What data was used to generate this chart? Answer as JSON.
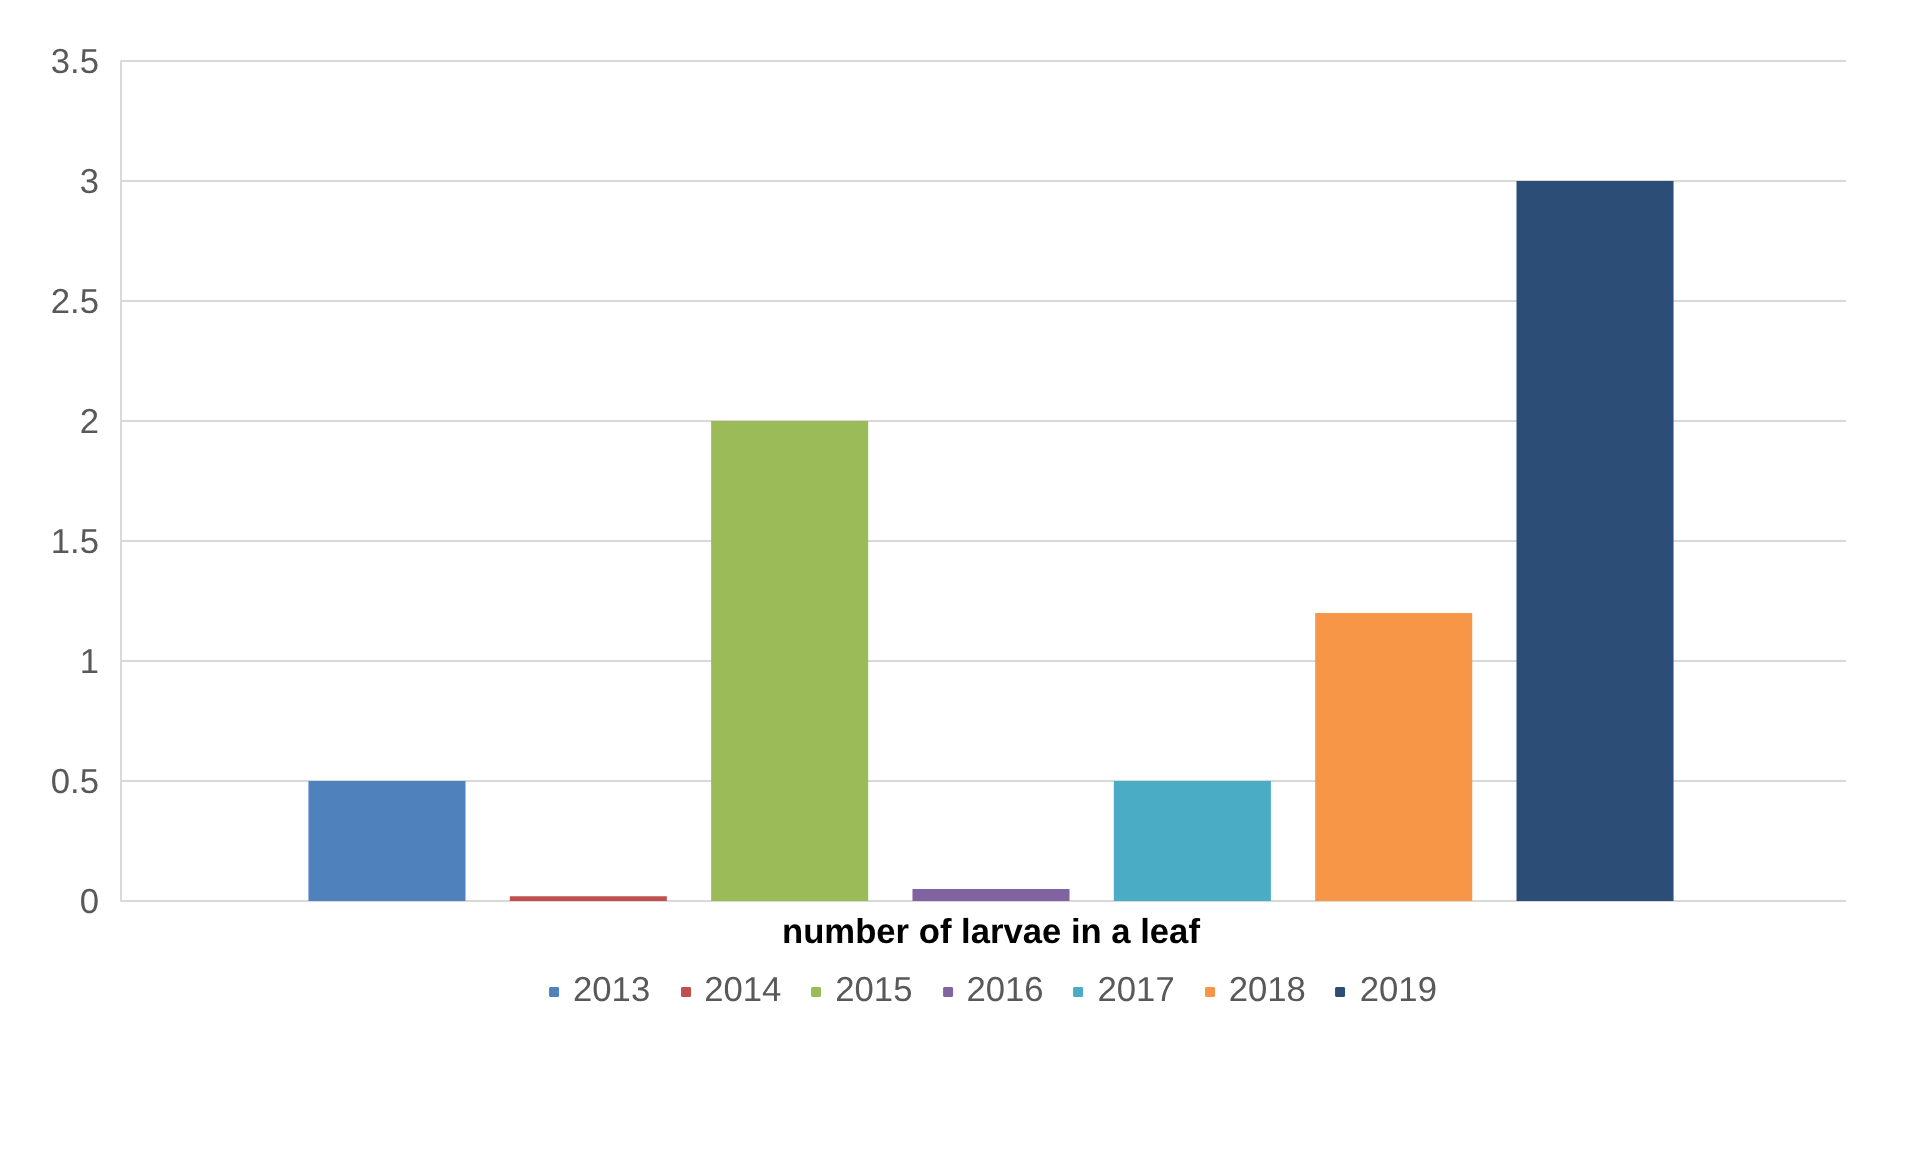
{
  "chart_data": {
    "type": "bar",
    "xlabel": "number of larvae in a leaf",
    "categories": [
      null
    ],
    "series": [
      {
        "name": "2013",
        "color": "#4f81bd",
        "values": [
          0.5
        ]
      },
      {
        "name": "2014",
        "color": "#c0504d",
        "values": [
          0.02
        ]
      },
      {
        "name": "2015",
        "color": "#9bbb59",
        "values": [
          2
        ]
      },
      {
        "name": "2016",
        "color": "#8064a2",
        "values": [
          0.05
        ]
      },
      {
        "name": "2017",
        "color": "#4bacc6",
        "values": [
          0.5
        ]
      },
      {
        "name": "2018",
        "color": "#f79646",
        "values": [
          1.2
        ]
      },
      {
        "name": "2019",
        "color": "#2c4d75",
        "values": [
          3
        ]
      }
    ],
    "ylim": [
      0,
      3.5
    ],
    "yticks": [
      0,
      0.5,
      1,
      1.5,
      2,
      2.5,
      3,
      3.5
    ],
    "grid": "y",
    "legend": "bottom"
  }
}
